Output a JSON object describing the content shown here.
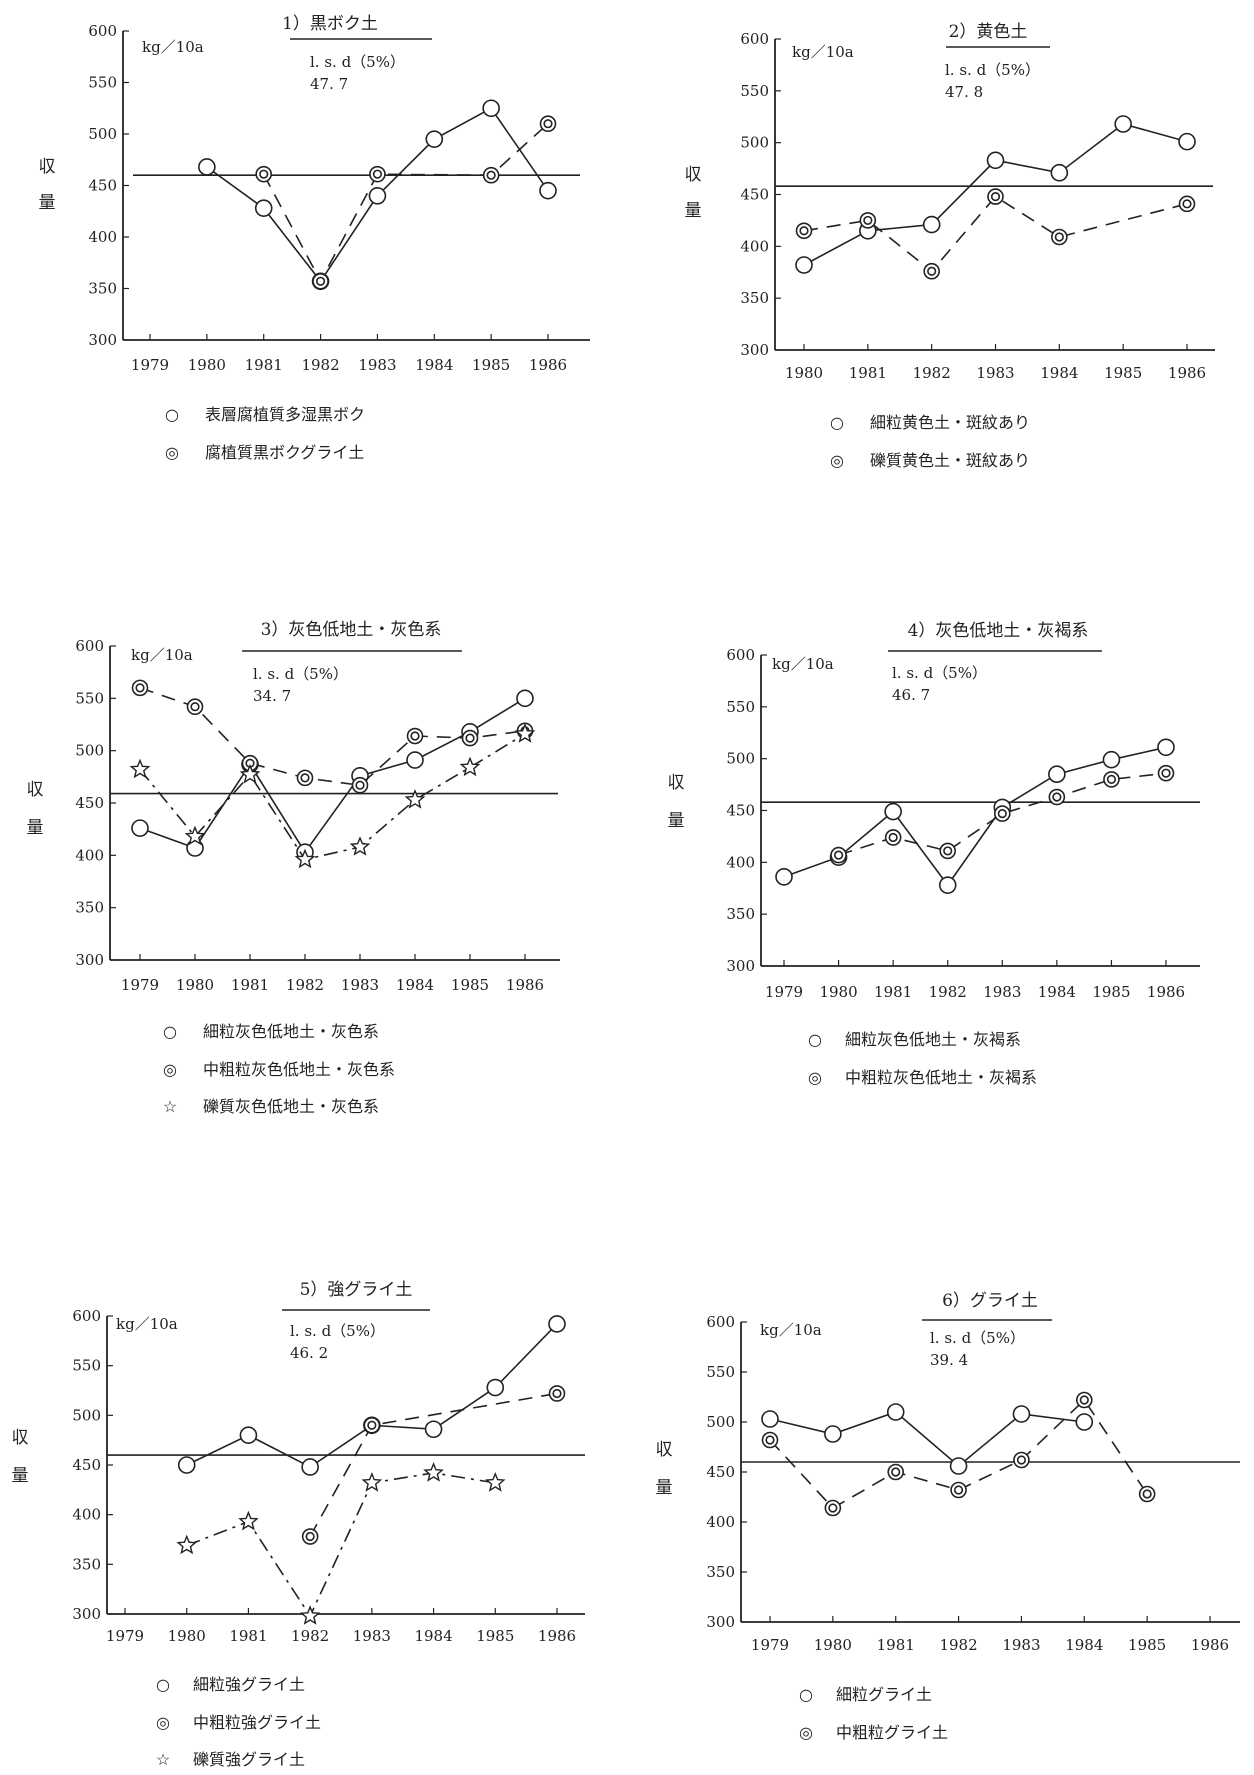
{
  "chart_data": [
    {
      "type": "line",
      "title": "1）黒ボク土",
      "unit": "kg／10a",
      "lsd_label": "l. s. d（5%）",
      "lsd_value": "47. 7",
      "ylabel": "収量",
      "ylim": [
        300,
        600
      ],
      "yticks": [
        "300",
        "350",
        "400",
        "450",
        "500",
        "550",
        "600"
      ],
      "xlim": [
        1979,
        1986
      ],
      "categories": [
        "1979",
        "1980",
        "1981",
        "1982",
        "1983",
        "1984",
        "1985",
        "1986"
      ],
      "reference_line": 460,
      "series": [
        {
          "name": "表層腐植質多湿黒ボク",
          "marker": "○",
          "style": "solid",
          "x": [
            1980,
            1981,
            1982,
            1983,
            1984,
            1985,
            1986
          ],
          "y": [
            468,
            428,
            357,
            440,
            495,
            525,
            445
          ]
        },
        {
          "name": "腐植質黒ボクグライ土",
          "marker": "◎",
          "style": "dashed",
          "x": [
            1981,
            1982,
            1983,
            1985,
            1986
          ],
          "y": [
            461,
            357,
            461,
            460,
            510
          ]
        }
      ]
    },
    {
      "type": "line",
      "title": "2）黄色土",
      "unit": "kg／10a",
      "lsd_label": "l. s. d（5%）",
      "lsd_value": "47. 8",
      "ylabel": "収量",
      "ylim": [
        300,
        600
      ],
      "yticks": [
        "300",
        "350",
        "400",
        "450",
        "500",
        "550",
        "600"
      ],
      "xlim": [
        1980,
        1986
      ],
      "categories": [
        "1980",
        "1981",
        "1982",
        "1983",
        "1984",
        "1985",
        "1986"
      ],
      "reference_line": 458,
      "series": [
        {
          "name": "細粒黄色土・斑紋あり",
          "marker": "○",
          "style": "solid",
          "x": [
            1980,
            1981,
            1982,
            1983,
            1984,
            1985,
            1986
          ],
          "y": [
            382,
            415,
            421,
            483,
            471,
            518,
            501
          ]
        },
        {
          "name": "礫質黄色土・斑紋あり",
          "marker": "◎",
          "style": "dashed",
          "x": [
            1980,
            1981,
            1982,
            1983,
            1984,
            1986
          ],
          "y": [
            415,
            425,
            376,
            448,
            409,
            441
          ]
        }
      ]
    },
    {
      "type": "line",
      "title": "3）灰色低地土・灰色系",
      "unit": "kg／10a",
      "lsd_label": "l. s. d（5%）",
      "lsd_value": "34. 7",
      "ylabel": "収量",
      "ylim": [
        300,
        600
      ],
      "yticks": [
        "300",
        "350",
        "400",
        "450",
        "500",
        "550",
        "600"
      ],
      "xlim": [
        1979,
        1986
      ],
      "categories": [
        "1979",
        "1980",
        "1981",
        "1982",
        "1983",
        "1984",
        "1985",
        "1986"
      ],
      "reference_line": 459,
      "series": [
        {
          "name": "細粒灰色低地土・灰色系",
          "marker": "○",
          "style": "solid",
          "x": [
            1979,
            1980,
            1981,
            1982,
            1983,
            1984,
            1985,
            1986
          ],
          "y": [
            426,
            407,
            487,
            403,
            476,
            491,
            518,
            550
          ]
        },
        {
          "name": "中粗粒灰色低地土・灰色系",
          "marker": "◎",
          "style": "dashed",
          "x": [
            1979,
            1980,
            1981,
            1982,
            1983,
            1984,
            1985,
            1986
          ],
          "y": [
            560,
            542,
            488,
            474,
            467,
            514,
            512,
            519
          ]
        },
        {
          "name": "礫質灰色低地土・灰色系",
          "marker": "☆",
          "style": "dashdot",
          "x": [
            1979,
            1980,
            1981,
            1982,
            1983,
            1984,
            1985,
            1986
          ],
          "y": [
            482,
            418,
            477,
            396,
            408,
            453,
            484,
            516
          ]
        }
      ]
    },
    {
      "type": "line",
      "title": "4）灰色低地土・灰褐系",
      "unit": "kg／10a",
      "lsd_label": "l. s. d（5%）",
      "lsd_value": "46. 7",
      "ylabel": "収量",
      "ylim": [
        300,
        600
      ],
      "yticks": [
        "300",
        "350",
        "400",
        "450",
        "500",
        "550",
        "600"
      ],
      "xlim": [
        1979,
        1986
      ],
      "categories": [
        "1979",
        "1980",
        "1981",
        "1982",
        "1983",
        "1984",
        "1985",
        "1986"
      ],
      "reference_line": 458,
      "series": [
        {
          "name": "細粒灰色低地土・灰褐系",
          "marker": "○",
          "style": "solid",
          "x": [
            1979,
            1980,
            1981,
            1982,
            1983,
            1984,
            1985,
            1986
          ],
          "y": [
            386,
            405,
            449,
            378,
            453,
            485,
            499,
            511
          ]
        },
        {
          "name": "中粗粒灰色低地土・灰褐系",
          "marker": "◎",
          "style": "dashed",
          "x": [
            1980,
            1981,
            1982,
            1983,
            1984,
            1985,
            1986
          ],
          "y": [
            407,
            424,
            411,
            447,
            463,
            480,
            486
          ]
        }
      ]
    },
    {
      "type": "line",
      "title": "5）強グライ土",
      "unit": "kg／10a",
      "lsd_label": "l. s. d（5%）",
      "lsd_value": "46. 2",
      "ylabel": "収量",
      "ylim": [
        300,
        600
      ],
      "yticks": [
        "300",
        "350",
        "400",
        "450",
        "500",
        "550",
        "600"
      ],
      "xlim": [
        1979,
        1986
      ],
      "categories": [
        "1979",
        "1980",
        "1981",
        "1982",
        "1983",
        "1984",
        "1985",
        "1986"
      ],
      "reference_line": 460,
      "series": [
        {
          "name": "細粒強グライ土",
          "marker": "○",
          "style": "solid",
          "x": [
            1980,
            1981,
            1982,
            1983,
            1984,
            1985,
            1986
          ],
          "y": [
            450,
            480,
            448,
            490,
            486,
            528,
            592
          ]
        },
        {
          "name": "中粗粒強グライ土",
          "marker": "◎",
          "style": "dashed",
          "x": [
            1982,
            1983,
            1986
          ],
          "y": [
            378,
            490,
            522
          ]
        },
        {
          "name": "礫質強グライ土",
          "marker": "☆",
          "style": "dashdot",
          "x": [
            1980,
            1981,
            1982,
            1983,
            1984,
            1985
          ],
          "y": [
            369,
            393,
            298,
            432,
            442,
            432
          ]
        }
      ]
    },
    {
      "type": "line",
      "title": "6）グライ土",
      "unit": "kg／10a",
      "lsd_label": "l. s. d（5%）",
      "lsd_value": "39. 4",
      "ylabel": "収量",
      "ylim": [
        300,
        600
      ],
      "yticks": [
        "300",
        "350",
        "400",
        "450",
        "500",
        "550",
        "600"
      ],
      "xlim": [
        1979,
        1986
      ],
      "categories": [
        "1979",
        "1980",
        "1981",
        "1982",
        "1983",
        "1984",
        "1985",
        "1986"
      ],
      "reference_line": 460,
      "series": [
        {
          "name": "細粒グライ土",
          "marker": "○",
          "style": "solid",
          "x": [
            1979,
            1980,
            1981,
            1982,
            1983,
            1984
          ],
          "y": [
            503,
            488,
            510,
            456,
            508,
            500
          ]
        },
        {
          "name": "中粗粒グライ土",
          "marker": "◎",
          "style": "dashed",
          "x": [
            1979,
            1980,
            1981,
            1982,
            1983,
            1984,
            1985
          ],
          "y": [
            482,
            414,
            450,
            432,
            462,
            522,
            428
          ]
        }
      ]
    }
  ]
}
